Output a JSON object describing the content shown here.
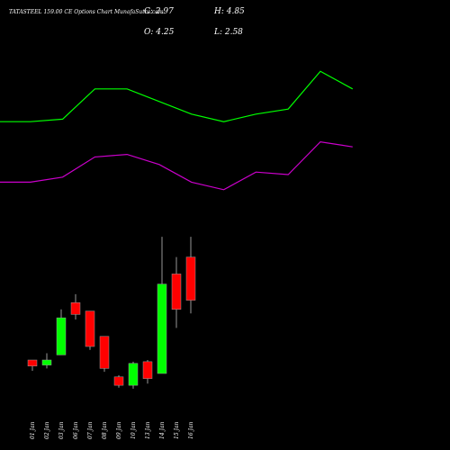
{
  "header": {
    "title": "TATASTEEL 159.00 CE Options Chart MunafaSutra.com",
    "close_text": "C: 2.97",
    "open_text": "O: 4.25",
    "high_text": "H: 4.85",
    "low_text": "L: 2.58"
  },
  "colors": {
    "background": "#000000",
    "upper_line": "#00ff00",
    "lower_line": "#cc00cc",
    "bull": "#00ff00",
    "bear": "#ff0000",
    "text": "#ffffff"
  },
  "chart_data": {
    "type": "candlestick",
    "categories": [
      "01 Jan",
      "02 Jan",
      "03 Jan",
      "06 Jan",
      "07 Jan",
      "08 Jan",
      "09 Jan",
      "10 Jan",
      "13 Jan",
      "14 Jan",
      "15 Jan",
      "16 Jan"
    ],
    "candles": [
      {
        "date": "01 Jan",
        "open": 1.2,
        "high": 1.2,
        "low": 0.88,
        "close": 1.02
      },
      {
        "date": "02 Jan",
        "open": 1.05,
        "high": 1.4,
        "low": 0.95,
        "close": 1.2
      },
      {
        "date": "03 Jan",
        "open": 1.35,
        "high": 2.7,
        "low": 1.35,
        "close": 2.45
      },
      {
        "date": "06 Jan",
        "open": 2.9,
        "high": 3.15,
        "low": 2.4,
        "close": 2.55
      },
      {
        "date": "07 Jan",
        "open": 2.65,
        "high": 2.65,
        "low": 1.5,
        "close": 1.6
      },
      {
        "date": "08 Jan",
        "open": 1.9,
        "high": 1.9,
        "low": 0.85,
        "close": 0.95
      },
      {
        "date": "09 Jan",
        "open": 0.7,
        "high": 0.75,
        "low": 0.38,
        "close": 0.45
      },
      {
        "date": "10 Jan",
        "open": 0.45,
        "high": 1.15,
        "low": 0.35,
        "close": 1.1
      },
      {
        "date": "13 Jan",
        "open": 1.15,
        "high": 1.2,
        "low": 0.5,
        "close": 0.65
      },
      {
        "date": "14 Jan",
        "open": 0.8,
        "high": 4.85,
        "low": 0.8,
        "close": 3.45
      },
      {
        "date": "15 Jan",
        "open": 3.75,
        "high": 4.25,
        "low": 2.15,
        "close": 2.7
      },
      {
        "date": "16 Jan",
        "open": 4.25,
        "high": 4.85,
        "low": 2.58,
        "close": 2.97
      }
    ],
    "upper_band": [
      6.6,
      6.6,
      6.7,
      7.9,
      7.9,
      7.4,
      6.9,
      6.6,
      6.9,
      7.1,
      8.6,
      7.9
    ],
    "lower_band": [
      4.2,
      4.2,
      4.4,
      5.2,
      5.3,
      4.9,
      4.2,
      3.9,
      4.6,
      4.5,
      5.8,
      5.6
    ],
    "ylim": [
      0,
      10
    ],
    "grid": false
  }
}
